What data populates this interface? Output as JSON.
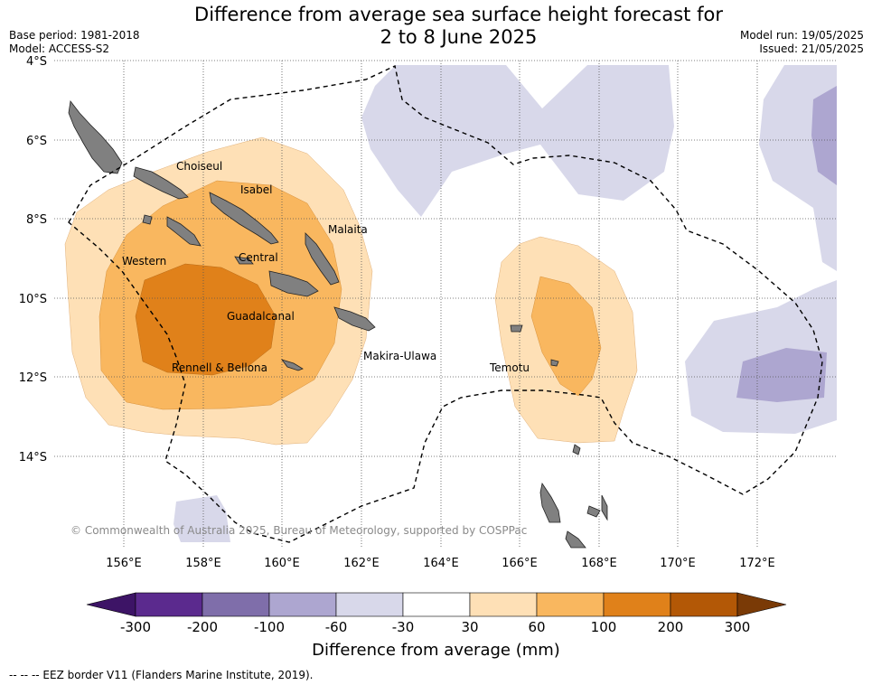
{
  "title_line1": "Difference from average sea surface height forecast for",
  "title_line2": "2 to 8 June 2025",
  "base_period": "Base period: 1981-2018",
  "model": "Model: ACCESS-S2",
  "model_run": "Model run: 19/05/2025",
  "issued": "Issued: 21/05/2025",
  "lat_labels": [
    "4°S",
    "6°S",
    "8°S",
    "10°S",
    "12°S",
    "14°S"
  ],
  "lon_labels": [
    "156°E",
    "158°E",
    "160°E",
    "162°E",
    "164°E",
    "166°E",
    "168°E",
    "170°E",
    "172°E"
  ],
  "places": {
    "choiseul": "Choiseul",
    "isabel": "Isabel",
    "malaita": "Malaita",
    "western": "Western",
    "central": "Central",
    "guadalcanal": "Guadalcanal",
    "makira": "Makira-Ulawa",
    "rennell": "Rennell & Bellona",
    "temotu": "Temotu"
  },
  "copyright": "© Commonwealth of Australia 2025, Bureau of Meteorology, supported by COSPPac",
  "colorbar": {
    "title": "Difference from average (mm)",
    "ticks": [
      "-300",
      "-200",
      "-100",
      "-60",
      "-30",
      "30",
      "60",
      "100",
      "200",
      "300"
    ],
    "colors": [
      "#4c1d80",
      "#5b2a8e",
      "#7f6eaa",
      "#ada6d0",
      "#d8d8ea",
      "#ffffff",
      "#fee0b6",
      "#f9b75f",
      "#e0811a",
      "#b35806",
      "#7a3a06"
    ]
  },
  "eez_note": "--  --  -- EEZ border V11 (Flanders Marine Institute, 2019)."
}
